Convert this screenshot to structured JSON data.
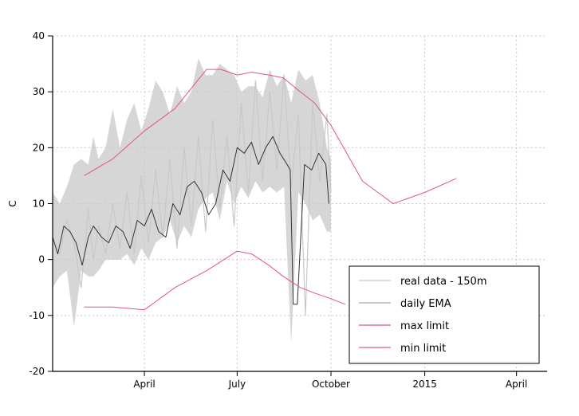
{
  "chart_data": {
    "type": "line",
    "title": "",
    "xlabel": "",
    "ylabel": "C",
    "ylim": [
      -20,
      40
    ],
    "xlim": [
      "2014-01-01",
      "2015-05-01"
    ],
    "grid": true,
    "legend_position": "bottom-right",
    "y_ticks": [
      -20,
      -10,
      0,
      10,
      20,
      30,
      40
    ],
    "x_ticks": [
      {
        "date": "2014-04-01",
        "label": "April"
      },
      {
        "date": "2014-07-01",
        "label": "July"
      },
      {
        "date": "2014-10-01",
        "label": "October"
      },
      {
        "date": "2015-01-01",
        "label": "2015"
      },
      {
        "date": "2015-04-01",
        "label": "April"
      }
    ],
    "colors": {
      "raw": "#c8c8c8",
      "ema": "#333333",
      "limits": "#e0577f",
      "grid": "#c8c8c8"
    },
    "series": [
      {
        "name": "real data - 150m",
        "style": "raw",
        "x": [
          "2014-01-01",
          "2014-01-08",
          "2014-01-15",
          "2014-01-22",
          "2014-01-29",
          "2014-02-05",
          "2014-02-10",
          "2014-02-15",
          "2014-02-22",
          "2014-03-01",
          "2014-03-08",
          "2014-03-15",
          "2014-03-22",
          "2014-03-29",
          "2014-04-05",
          "2014-04-12",
          "2014-04-19",
          "2014-04-26",
          "2014-05-03",
          "2014-05-10",
          "2014-05-17",
          "2014-05-24",
          "2014-05-31",
          "2014-06-07",
          "2014-06-14",
          "2014-06-21",
          "2014-06-28",
          "2014-07-05",
          "2014-07-12",
          "2014-07-19",
          "2014-07-26",
          "2014-08-02",
          "2014-08-09",
          "2014-08-16",
          "2014-08-23",
          "2014-08-30",
          "2014-09-06",
          "2014-09-13",
          "2014-09-20",
          "2014-09-27",
          "2014-10-01"
        ],
        "y": [
          4,
          1,
          7,
          3,
          -5,
          9,
          0,
          6,
          1,
          10,
          2,
          12,
          1,
          15,
          3,
          16,
          4,
          18,
          2,
          20,
          6,
          22,
          5,
          25,
          9,
          22,
          6,
          28,
          12,
          32,
          14,
          30,
          16,
          33,
          13,
          26,
          -10,
          28,
          14,
          26,
          12
        ],
        "low": [
          -5,
          -3,
          -2,
          -12,
          -2,
          -3,
          -3,
          -2,
          0,
          0,
          0,
          1,
          -1,
          2,
          0,
          3,
          4,
          7,
          3,
          6,
          4,
          9,
          11,
          12,
          7,
          14,
          10,
          13,
          11,
          14,
          12,
          13,
          12,
          13,
          -15,
          12,
          10,
          7,
          8,
          5,
          5
        ],
        "high": [
          12,
          10,
          13,
          17,
          18,
          17,
          22,
          18,
          20,
          27,
          20,
          25,
          28,
          23,
          27,
          32,
          30,
          26,
          31,
          28,
          30,
          36,
          33,
          33,
          35,
          34,
          33,
          30,
          31,
          31,
          29,
          34,
          31,
          33,
          28,
          34,
          32,
          33,
          28,
          20,
          18
        ]
      },
      {
        "name": "daily EMA",
        "style": "ema",
        "x": [
          "2014-01-01",
          "2014-01-06",
          "2014-01-12",
          "2014-01-18",
          "2014-01-24",
          "2014-01-30",
          "2014-02-05",
          "2014-02-10",
          "2014-02-14",
          "2014-02-18",
          "2014-02-25",
          "2014-03-04",
          "2014-03-11",
          "2014-03-18",
          "2014-03-25",
          "2014-04-01",
          "2014-04-08",
          "2014-04-15",
          "2014-04-22",
          "2014-04-29",
          "2014-05-06",
          "2014-05-13",
          "2014-05-20",
          "2014-05-27",
          "2014-06-03",
          "2014-06-10",
          "2014-06-17",
          "2014-06-24",
          "2014-07-01",
          "2014-07-08",
          "2014-07-15",
          "2014-07-22",
          "2014-07-29",
          "2014-08-05",
          "2014-08-12",
          "2014-08-19",
          "2014-08-22",
          "2014-08-25",
          "2014-08-29",
          "2014-09-05",
          "2014-09-12",
          "2014-09-19",
          "2014-09-26",
          "2014-09-29"
        ],
        "y": [
          4,
          1,
          6,
          5,
          3,
          -1,
          4,
          6,
          5,
          4,
          3,
          6,
          5,
          2,
          7,
          6,
          9,
          5,
          4,
          10,
          8,
          13,
          14,
          12,
          8,
          10,
          16,
          14,
          20,
          19,
          21,
          17,
          20,
          22,
          19,
          17,
          16,
          -8,
          -8,
          17,
          16,
          19,
          17,
          10
        ]
      },
      {
        "name": "max limit",
        "style": "limit",
        "x": [
          "2014-02-01",
          "2014-03-01",
          "2014-04-01",
          "2014-05-01",
          "2014-06-01",
          "2014-06-15",
          "2014-07-01",
          "2014-07-15",
          "2014-08-01",
          "2014-08-15",
          "2014-09-01",
          "2014-09-15",
          "2014-10-01",
          "2014-11-01",
          "2014-12-01",
          "2015-01-01",
          "2015-02-01"
        ],
        "y": [
          15,
          18,
          23,
          27,
          34,
          34,
          33,
          33.5,
          33,
          32.5,
          30,
          28,
          24,
          14,
          10,
          12,
          14.5
        ]
      },
      {
        "name": "min limit",
        "style": "limit",
        "x": [
          "2014-02-01",
          "2014-03-01",
          "2014-04-01",
          "2014-05-01",
          "2014-06-01",
          "2014-07-01",
          "2014-07-15",
          "2014-08-01",
          "2014-08-15",
          "2014-09-01",
          "2014-09-15",
          "2014-10-01",
          "2014-10-15"
        ],
        "y": [
          -8.5,
          -8.5,
          -9,
          -5,
          -2,
          1.5,
          1,
          -1,
          -3,
          -5,
          -6,
          -7,
          -8
        ]
      }
    ]
  }
}
